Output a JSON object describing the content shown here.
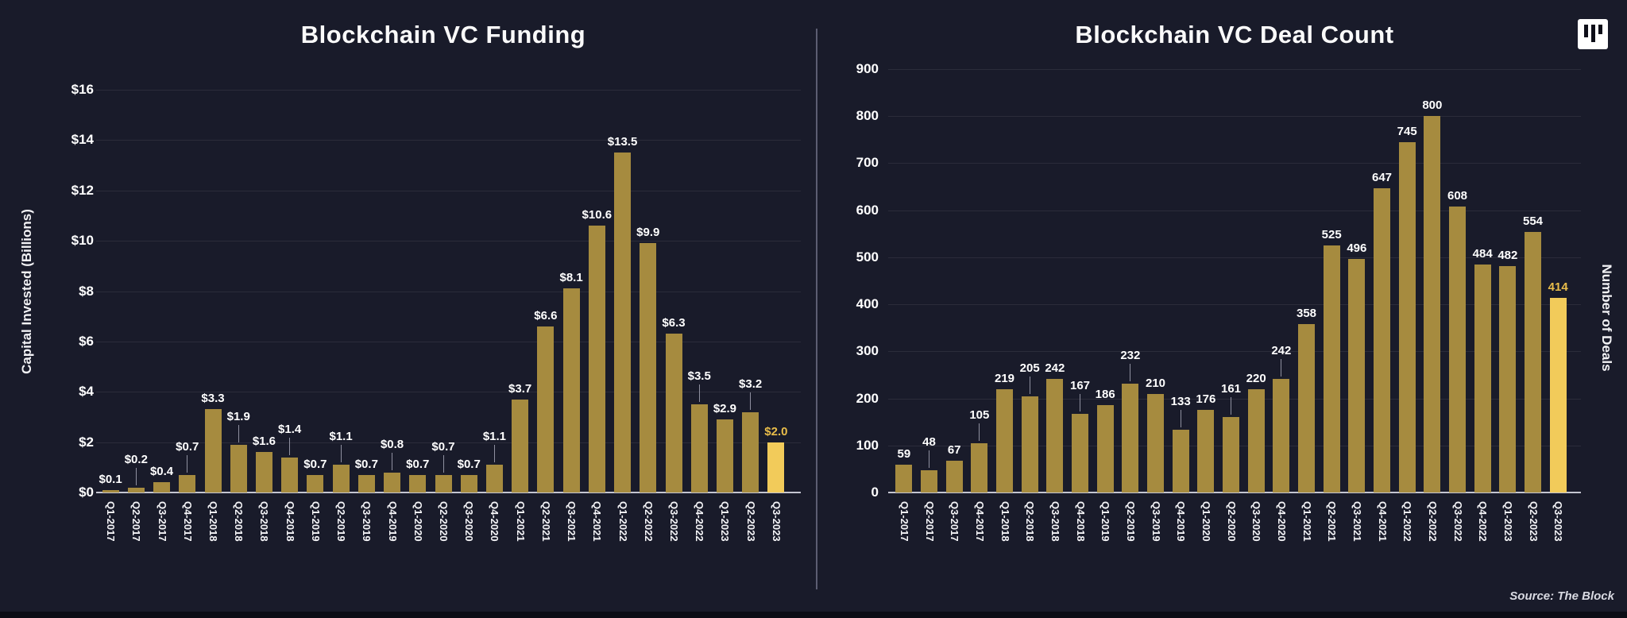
{
  "page": {
    "background": "#191b2a",
    "source_note": "Source: The Block"
  },
  "icons": {
    "logo": "the-block-logo"
  },
  "colors": {
    "bar": "#a68b3f",
    "highlight_bar": "#f2cb5a",
    "highlight_text": "#e9bd4a",
    "text": "#ffffff",
    "gridline": "rgba(255,255,255,0.08)",
    "axis_baseline": "#c4c5d1"
  },
  "chart_data": [
    {
      "type": "bar",
      "title": "Blockchain VC Funding",
      "ylabel": "Capital Invested (Billions)",
      "xlabel": "",
      "ylim": [
        0,
        16
      ],
      "yticks": [
        "$0",
        "$2",
        "$4",
        "$6",
        "$8",
        "$10",
        "$12",
        "$14",
        "$16"
      ],
      "grid": true,
      "legend_position": "none",
      "categories": [
        "Q1-2017",
        "Q2-2017",
        "Q3-2017",
        "Q4-2017",
        "Q1-2018",
        "Q2-2018",
        "Q3-2018",
        "Q4-2018",
        "Q1-2019",
        "Q2-2019",
        "Q3-2019",
        "Q4-2019",
        "Q1-2020",
        "Q2-2020",
        "Q3-2020",
        "Q4-2020",
        "Q1-2021",
        "Q2-2021",
        "Q3-2021",
        "Q4-2021",
        "Q1-2022",
        "Q2-2022",
        "Q3-2022",
        "Q4-2022",
        "Q1-2023",
        "Q2-2023",
        "Q3-2023"
      ],
      "values": [
        0.1,
        0.2,
        0.4,
        0.7,
        3.3,
        1.9,
        1.6,
        1.4,
        0.7,
        1.1,
        0.7,
        0.8,
        0.7,
        0.7,
        0.7,
        1.1,
        3.7,
        6.6,
        8.1,
        10.6,
        13.5,
        9.9,
        6.3,
        3.5,
        2.9,
        3.2,
        2.0
      ],
      "labels": [
        "$0.1",
        "$0.2",
        "$0.4",
        "$0.7",
        "$3.3",
        "$1.9",
        "$1.6",
        "$1.4",
        "$0.7",
        "$1.1",
        "$0.7",
        "$0.8",
        "$0.7",
        "$0.7",
        "$0.7",
        "$1.1",
        "$3.7",
        "$6.6",
        "$8.1",
        "$10.6",
        "$13.5",
        "$9.9",
        "$6.3",
        "$3.5",
        "$2.9",
        "$3.2",
        "$2.0"
      ],
      "bar_color": "#a68b3f",
      "highlight_color": "#f2cb5a",
      "highlight_label_color": "#e9bd4a",
      "highlight_index": 26
    },
    {
      "type": "bar",
      "title": "Blockchain VC Deal Count",
      "ylabel": "Number of Deals",
      "xlabel": "",
      "ylim": [
        0,
        900
      ],
      "yticks": [
        "0",
        "100",
        "200",
        "300",
        "400",
        "500",
        "600",
        "700",
        "800",
        "900"
      ],
      "grid": true,
      "legend_position": "none",
      "categories": [
        "Q1-2017",
        "Q2-2017",
        "Q3-2017",
        "Q4-2017",
        "Q1-2018",
        "Q2-2018",
        "Q3-2018",
        "Q4-2018",
        "Q1-2019",
        "Q2-2019",
        "Q3-2019",
        "Q4-2019",
        "Q1-2020",
        "Q2-2020",
        "Q3-2020",
        "Q4-2020",
        "Q1-2021",
        "Q2-2021",
        "Q3-2021",
        "Q4-2021",
        "Q1-2022",
        "Q2-2022",
        "Q3-2022",
        "Q4-2022",
        "Q1-2023",
        "Q2-2023",
        "Q3-2023"
      ],
      "values": [
        59,
        48,
        67,
        105,
        219,
        205,
        242,
        167,
        186,
        232,
        210,
        133,
        176,
        161,
        220,
        242,
        358,
        525,
        496,
        647,
        745,
        800,
        608,
        484,
        482,
        554,
        414
      ],
      "labels": [
        "59",
        "48",
        "67",
        "105",
        "219",
        "205",
        "242",
        "167",
        "186",
        "232",
        "210",
        "133",
        "176",
        "161",
        "220",
        "242",
        "358",
        "525",
        "496",
        "647",
        "745",
        "800",
        "608",
        "484",
        "482",
        "554",
        "414"
      ],
      "bar_color": "#a68b3f",
      "highlight_color": "#f2cb5a",
      "highlight_label_color": "#e9bd4a",
      "highlight_index": 26
    }
  ]
}
